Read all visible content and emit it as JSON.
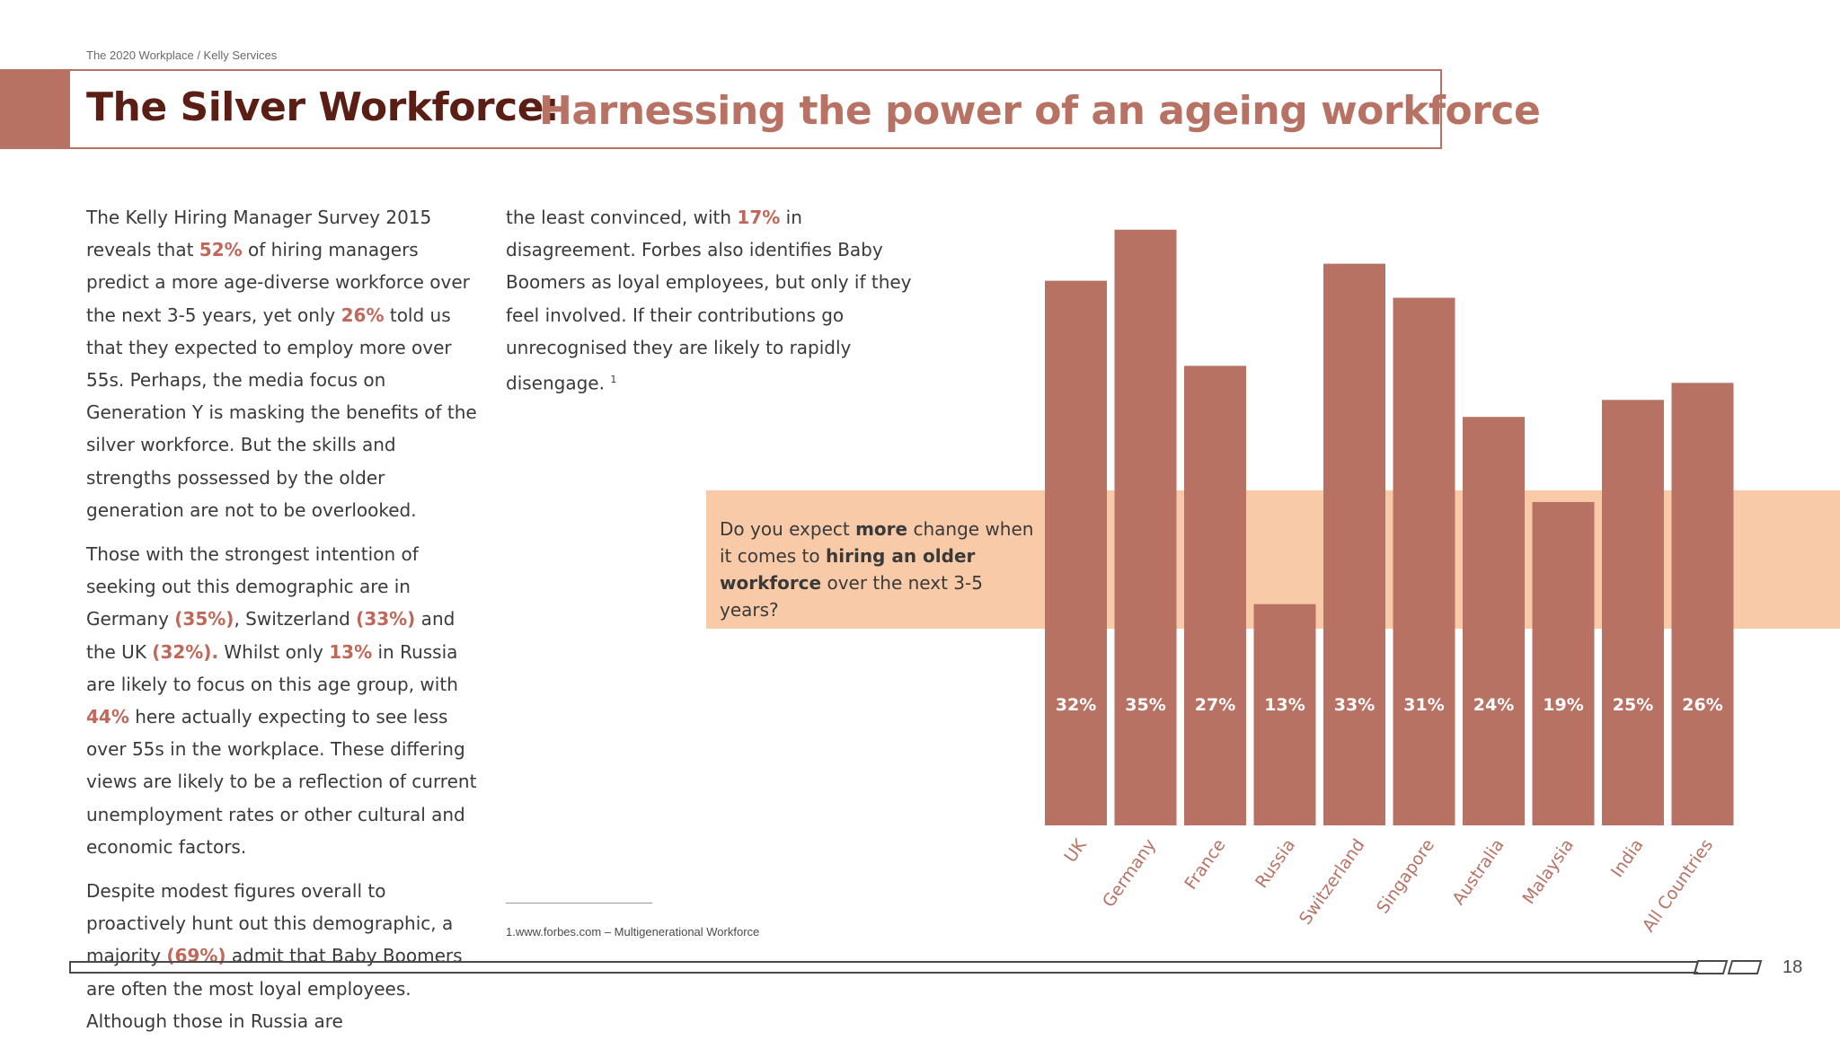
{
  "breadcrumb": "The 2020 Workplace  / Kelly Services",
  "title": {
    "main": "The Silver Workforce:",
    "sub": "Harnessing the power of an ageing workforce"
  },
  "body": {
    "p1": [
      "The Kelly Hiring Manager Survey 2015 reveals that ",
      "52%",
      " of hiring managers predict a more age-diverse workforce over the next 3-5 years, yet only ",
      "26%",
      " told us that they expected to employ more over 55s. Perhaps, the media focus on Generation Y is masking the benefits of the silver workforce. But the skills and strengths possessed by the older generation are not to be overlooked."
    ],
    "p2": [
      "Those with the strongest intention of seeking out this demographic are in Germany ",
      "(35%)",
      ", Switzerland ",
      "(33%)",
      " and the UK ",
      "(32%).",
      " Whilst only ",
      "13%",
      " in Russia are likely to focus on this age group, with ",
      "44%",
      " here actually expecting to see less over 55s in the workplace. These differing views are likely to be a reflection of current unemployment rates or other cultural and economic factors."
    ],
    "p3": [
      "Despite modest figures overall to proactively hunt out this demographic, a majority ",
      "(69%)",
      " admit that Baby Boomers are often the most loyal employees. Although those in Russia are"
    ],
    "p4": [
      "the least convinced, with ",
      "17%",
      " in disagreement. Forbes also identifies Baby Boomers as loyal employees, but only if they feel involved. If their contributions go unrecognised they are likely to rapidly disengage. ",
      "1"
    ]
  },
  "footnote": "1.www.forbes.com – Multigenerational Workforce",
  "question": {
    "parts": [
      "Do you expect ",
      "more",
      " change when it comes to ",
      "hiring an older workforce",
      " over the next 3-5 years?"
    ]
  },
  "page_number": "18",
  "colors": {
    "bar": "#b87264",
    "band": "#f8caa8",
    "title_dark": "#5a1e14",
    "accent": "#c0675a"
  },
  "chart_data": {
    "type": "bar",
    "title": "",
    "xlabel": "",
    "ylabel": "",
    "categories": [
      "UK",
      "Germany",
      "France",
      "Russia",
      "Switzerland",
      "Singapore",
      "Australia",
      "Malaysia",
      "India",
      "All Countries"
    ],
    "values": [
      32,
      35,
      27,
      13,
      33,
      31,
      24,
      19,
      25,
      26
    ],
    "value_labels": [
      "32%",
      "35%",
      "27%",
      "13%",
      "33%",
      "31%",
      "24%",
      "19%",
      "25%",
      "26%"
    ],
    "ylim": [
      0,
      35
    ],
    "grid": false,
    "legend": "none"
  }
}
